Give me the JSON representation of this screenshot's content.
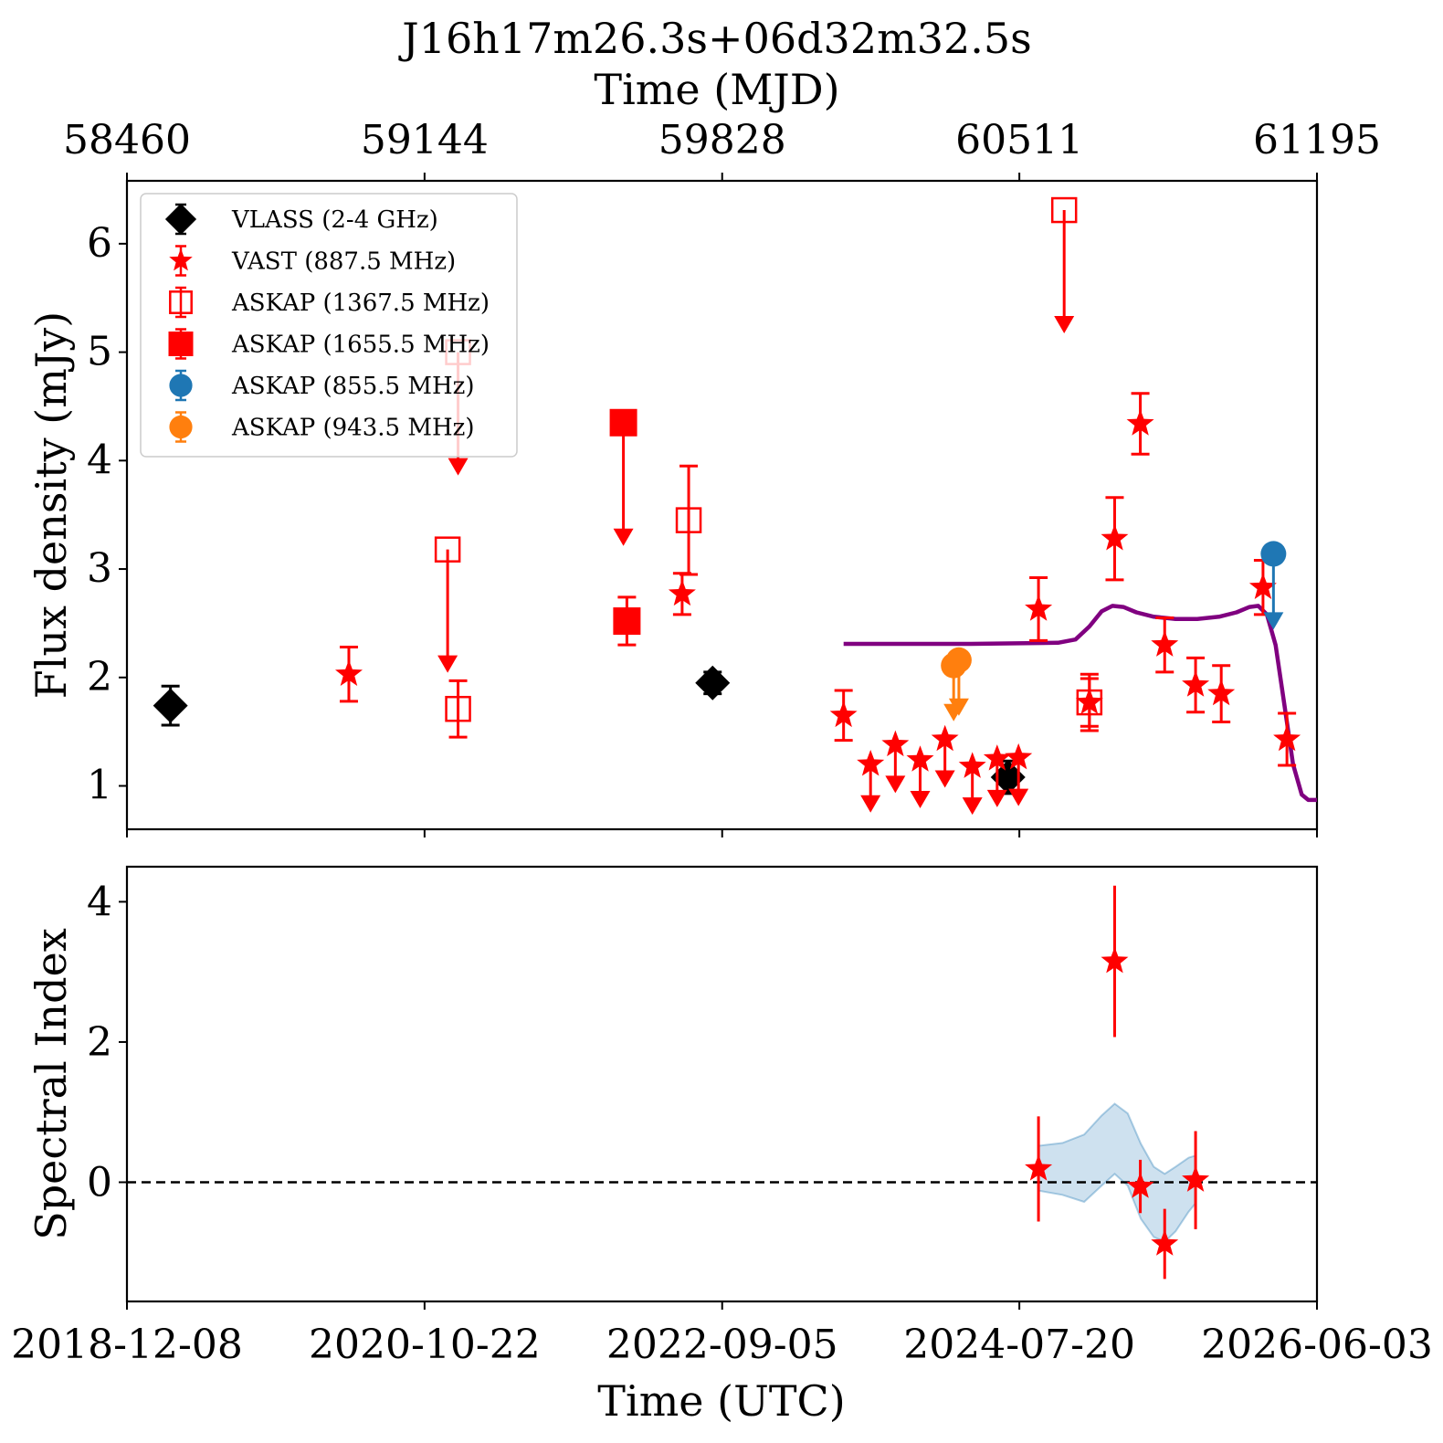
{
  "chart_data": {
    "type": "scatter",
    "title": "J16h17m26.3s+06d32m32.5s",
    "top_axis": {
      "label": "Time (MJD)",
      "ticks": [
        58460,
        59144,
        59828,
        60511,
        61195
      ]
    },
    "x_axis": {
      "label": "Time (UTC)",
      "unit": "MJD",
      "range": [
        58460,
        61195
      ],
      "tick_values": [
        58460,
        59144,
        59828,
        60511,
        61195
      ],
      "tick_labels": [
        "2018-12-08",
        "2020-10-22",
        "2022-09-05",
        "2024-07-20",
        "2026-06-03"
      ]
    },
    "panels": [
      {
        "id": "flux",
        "ylabel": "Flux density (mJy)",
        "ylim": [
          0.6,
          6.58
        ],
        "yticks": [
          1,
          2,
          3,
          4,
          5,
          6
        ],
        "legend": {
          "placement": "upper-left",
          "entries": [
            {
              "series": "vlass",
              "label": "VLASS (2-4 GHz)"
            },
            {
              "series": "vast",
              "label": "VAST (887.5 MHz)"
            },
            {
              "series": "askap1367",
              "label": "ASKAP (1367.5 MHz)"
            },
            {
              "series": "askap1655",
              "label": "ASKAP (1655.5 MHz)"
            },
            {
              "series": "askap855",
              "label": "ASKAP (855.5 MHz)"
            },
            {
              "series": "askap943",
              "label": "ASKAP (943.5 MHz)"
            }
          ]
        },
        "series": [
          {
            "id": "vlass",
            "name": "VLASS (2-4 GHz)",
            "marker": "diamond",
            "color": "#000000",
            "points": [
              {
                "x": 58560,
                "y": 1.74,
                "err": 0.18
              },
              {
                "x": 59806,
                "y": 1.95,
                "err": 0.1
              },
              {
                "x": 60485,
                "y": 1.08,
                "err": 0.15
              }
            ]
          },
          {
            "id": "vast",
            "name": "VAST (887.5 MHz)",
            "marker": "star",
            "color": "#ff0000",
            "points": [
              {
                "x": 58970,
                "y": 2.03,
                "err": 0.25
              },
              {
                "x": 59736,
                "y": 2.77,
                "err": 0.19
              },
              {
                "x": 60107,
                "y": 1.65,
                "err": 0.23
              },
              {
                "x": 60169,
                "y": 1.2,
                "upper": true
              },
              {
                "x": 60226,
                "y": 1.38,
                "upper": true
              },
              {
                "x": 60283,
                "y": 1.24,
                "upper": true
              },
              {
                "x": 60340,
                "y": 1.43,
                "upper": true
              },
              {
                "x": 60403,
                "y": 1.18,
                "upper": true
              },
              {
                "x": 60460,
                "y": 1.25,
                "upper": true
              },
              {
                "x": 60509,
                "y": 1.26,
                "upper": true
              },
              {
                "x": 60555,
                "y": 2.63,
                "err": 0.29
              },
              {
                "x": 60672,
                "y": 1.77,
                "err": 0.26
              },
              {
                "x": 60730,
                "y": 3.28,
                "err": 0.38
              },
              {
                "x": 60789,
                "y": 4.34,
                "err": 0.28
              },
              {
                "x": 60845,
                "y": 2.3,
                "err": 0.25
              },
              {
                "x": 60916,
                "y": 1.93,
                "err": 0.25
              },
              {
                "x": 60975,
                "y": 1.85,
                "err": 0.26
              },
              {
                "x": 61071,
                "y": 2.83,
                "err": 0.25
              },
              {
                "x": 61126,
                "y": 1.43,
                "err": 0.24
              }
            ]
          },
          {
            "id": "askap1367",
            "name": "ASKAP (1367.5 MHz)",
            "marker": "square-open",
            "color": "#ff0000",
            "points": [
              {
                "x": 59221,
                "y": 5.0,
                "upper": true
              },
              {
                "x": 59197,
                "y": 3.18,
                "upper": true
              },
              {
                "x": 59221,
                "y": 1.71,
                "err": 0.26
              },
              {
                "x": 59751,
                "y": 3.45,
                "err": 0.5
              },
              {
                "x": 60672,
                "y": 1.77,
                "err": 0.22
              },
              {
                "x": 60614,
                "y": 6.31,
                "upper": true
              }
            ]
          },
          {
            "id": "askap1655",
            "name": "ASKAP (1655.5 MHz)",
            "marker": "square",
            "color": "#ff0000",
            "points": [
              {
                "x": 59601,
                "y": 4.35,
                "upper": true
              },
              {
                "x": 59609,
                "y": 2.52,
                "err": 0.22
              }
            ]
          },
          {
            "id": "askap855",
            "name": "ASKAP (855.5 MHz)",
            "marker": "circle",
            "color": "#1f77b4",
            "points": [
              {
                "x": 61095,
                "y": 3.14,
                "upper": true
              }
            ]
          },
          {
            "id": "askap943",
            "name": "ASKAP (943.5 MHz)",
            "marker": "circle",
            "color": "#ff7f0e",
            "points": [
              {
                "x": 60360,
                "y": 2.11,
                "upper": true
              },
              {
                "x": 60372,
                "y": 2.16,
                "upper": true
              }
            ]
          }
        ],
        "model_curve": {
          "color": "#800080",
          "points": [
            [
              60107,
              2.31
            ],
            [
              60400,
              2.31
            ],
            [
              60600,
              2.32
            ],
            [
              60640,
              2.35
            ],
            [
              60672,
              2.47
            ],
            [
              60700,
              2.61
            ],
            [
              60725,
              2.66
            ],
            [
              60750,
              2.65
            ],
            [
              60780,
              2.6
            ],
            [
              60820,
              2.56
            ],
            [
              60870,
              2.54
            ],
            [
              60920,
              2.54
            ],
            [
              60970,
              2.56
            ],
            [
              61010,
              2.6
            ],
            [
              61040,
              2.65
            ],
            [
              61060,
              2.66
            ],
            [
              61080,
              2.58
            ],
            [
              61100,
              2.3
            ],
            [
              61120,
              1.75
            ],
            [
              61140,
              1.2
            ],
            [
              61160,
              0.92
            ],
            [
              61175,
              0.87
            ],
            [
              61195,
              0.87
            ]
          ]
        }
      },
      {
        "id": "spectral",
        "ylabel": "Spectral Index",
        "ylim": [
          -1.7,
          4.5
        ],
        "yticks": [
          0,
          2,
          4
        ],
        "reference_line": {
          "y": 0,
          "style": "dashed",
          "color": "#000000"
        },
        "series": [
          {
            "id": "spectral_index",
            "marker": "star",
            "color": "#ff0000",
            "points": [
              {
                "x": 60555,
                "y": 0.19,
                "err": 0.75
              },
              {
                "x": 60730,
                "y": 3.15,
                "err": 1.08
              },
              {
                "x": 60789,
                "y": -0.06,
                "err": 0.38
              },
              {
                "x": 60845,
                "y": -0.88,
                "err": 0.5
              },
              {
                "x": 60916,
                "y": 0.03,
                "err": 0.7
              }
            ]
          }
        ],
        "band": {
          "color": "#1f77b4",
          "opacity": 0.22,
          "upper": [
            [
              60555,
              0.52
            ],
            [
              60610,
              0.56
            ],
            [
              60660,
              0.68
            ],
            [
              60700,
              0.95
            ],
            [
              60730,
              1.12
            ],
            [
              60760,
              0.98
            ],
            [
              60790,
              0.55
            ],
            [
              60820,
              0.22
            ],
            [
              60845,
              0.12
            ],
            [
              60870,
              0.22
            ],
            [
              60900,
              0.35
            ],
            [
              60916,
              0.38
            ]
          ],
          "lower": [
            [
              60555,
              -0.12
            ],
            [
              60610,
              -0.18
            ],
            [
              60660,
              -0.28
            ],
            [
              60700,
              -0.05
            ],
            [
              60730,
              0.12
            ],
            [
              60760,
              -0.05
            ],
            [
              60790,
              -0.52
            ],
            [
              60820,
              -0.78
            ],
            [
              60845,
              -0.85
            ],
            [
              60870,
              -0.7
            ],
            [
              60900,
              -0.42
            ],
            [
              60916,
              -0.3
            ]
          ]
        }
      }
    ]
  }
}
